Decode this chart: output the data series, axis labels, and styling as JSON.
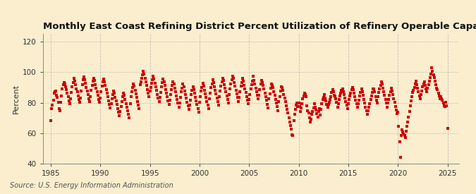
{
  "title": "Monthly East Coast Refining District Percent Utilization of Refinery Operable Capacity",
  "ylabel": "Percent",
  "source": "Source: U.S. Energy Information Administration",
  "bg_color": "#faeece",
  "plot_bg_color": "#faeece",
  "marker_color": "#cc0000",
  "marker": "s",
  "marker_size": 2.8,
  "xlim": [
    1984.2,
    2026.2
  ],
  "ylim": [
    40,
    125
  ],
  "yticks": [
    40,
    60,
    80,
    100,
    120
  ],
  "xticks": [
    1985,
    1990,
    1995,
    2000,
    2005,
    2010,
    2015,
    2020,
    2025
  ],
  "grid_color": "#aaaaaa",
  "title_fontsize": 9.5,
  "axis_fontsize": 7.5,
  "source_fontsize": 7.0,
  "data": [
    [
      1985.0,
      68.5
    ],
    [
      1985.083,
      76.2
    ],
    [
      1985.167,
      78.4
    ],
    [
      1985.25,
      81.5
    ],
    [
      1985.333,
      86.2
    ],
    [
      1985.417,
      87.3
    ],
    [
      1985.5,
      87.8
    ],
    [
      1985.583,
      85.1
    ],
    [
      1985.667,
      83.4
    ],
    [
      1985.75,
      80.5
    ],
    [
      1985.833,
      76.3
    ],
    [
      1985.917,
      74.8
    ],
    [
      1986.0,
      80.2
    ],
    [
      1986.083,
      84.6
    ],
    [
      1986.167,
      89.1
    ],
    [
      1986.25,
      91.8
    ],
    [
      1986.333,
      93.2
    ],
    [
      1986.417,
      92.5
    ],
    [
      1986.5,
      90.3
    ],
    [
      1986.583,
      88.4
    ],
    [
      1986.667,
      86.1
    ],
    [
      1986.75,
      83.8
    ],
    [
      1986.833,
      81.2
    ],
    [
      1986.917,
      79.6
    ],
    [
      1987.0,
      82.4
    ],
    [
      1987.083,
      86.8
    ],
    [
      1987.167,
      90.5
    ],
    [
      1987.25,
      93.4
    ],
    [
      1987.333,
      95.8
    ],
    [
      1987.417,
      94.1
    ],
    [
      1987.5,
      91.7
    ],
    [
      1987.583,
      89.3
    ],
    [
      1987.667,
      87.0
    ],
    [
      1987.75,
      84.6
    ],
    [
      1987.833,
      82.1
    ],
    [
      1987.917,
      80.3
    ],
    [
      1988.0,
      83.1
    ],
    [
      1988.083,
      87.5
    ],
    [
      1988.167,
      91.8
    ],
    [
      1988.25,
      94.9
    ],
    [
      1988.333,
      96.8
    ],
    [
      1988.417,
      95.3
    ],
    [
      1988.5,
      92.7
    ],
    [
      1988.583,
      90.2
    ],
    [
      1988.667,
      87.9
    ],
    [
      1988.75,
      85.4
    ],
    [
      1988.833,
      82.8
    ],
    [
      1988.917,
      80.9
    ],
    [
      1989.0,
      83.8
    ],
    [
      1989.083,
      88.1
    ],
    [
      1989.167,
      91.6
    ],
    [
      1989.25,
      94.2
    ],
    [
      1989.333,
      96.0
    ],
    [
      1989.417,
      94.5
    ],
    [
      1989.5,
      91.9
    ],
    [
      1989.583,
      89.4
    ],
    [
      1989.667,
      87.1
    ],
    [
      1989.75,
      84.7
    ],
    [
      1989.833,
      82.2
    ],
    [
      1989.917,
      80.1
    ],
    [
      1990.0,
      82.9
    ],
    [
      1990.083,
      87.3
    ],
    [
      1990.167,
      90.8
    ],
    [
      1990.25,
      93.5
    ],
    [
      1990.333,
      95.4
    ],
    [
      1990.417,
      93.8
    ],
    [
      1990.5,
      91.2
    ],
    [
      1990.583,
      88.7
    ],
    [
      1990.667,
      86.3
    ],
    [
      1990.75,
      83.8
    ],
    [
      1990.833,
      81.3
    ],
    [
      1990.917,
      79.0
    ],
    [
      1991.0,
      76.8
    ],
    [
      1991.083,
      79.4
    ],
    [
      1991.167,
      82.6
    ],
    [
      1991.25,
      85.3
    ],
    [
      1991.333,
      87.8
    ],
    [
      1991.417,
      86.2
    ],
    [
      1991.5,
      83.6
    ],
    [
      1991.583,
      81.1
    ],
    [
      1991.667,
      78.7
    ],
    [
      1991.75,
      76.2
    ],
    [
      1991.833,
      73.8
    ],
    [
      1991.917,
      71.5
    ],
    [
      1992.0,
      74.2
    ],
    [
      1992.083,
      77.6
    ],
    [
      1992.167,
      81.0
    ],
    [
      1992.25,
      83.8
    ],
    [
      1992.333,
      86.3
    ],
    [
      1992.417,
      84.7
    ],
    [
      1992.5,
      82.1
    ],
    [
      1992.583,
      79.6
    ],
    [
      1992.667,
      77.2
    ],
    [
      1992.75,
      74.7
    ],
    [
      1992.833,
      72.3
    ],
    [
      1992.917,
      70.0
    ],
    [
      1993.0,
      79.5
    ],
    [
      1993.083,
      83.9
    ],
    [
      1993.167,
      87.4
    ],
    [
      1993.25,
      90.1
    ],
    [
      1993.333,
      92.5
    ],
    [
      1993.417,
      91.0
    ],
    [
      1993.5,
      88.3
    ],
    [
      1993.583,
      85.8
    ],
    [
      1993.667,
      83.4
    ],
    [
      1993.75,
      80.9
    ],
    [
      1993.833,
      78.4
    ],
    [
      1993.917,
      76.1
    ],
    [
      1994.0,
      91.8
    ],
    [
      1994.083,
      93.5
    ],
    [
      1994.167,
      96.1
    ],
    [
      1994.25,
      98.4
    ],
    [
      1994.333,
      100.5
    ],
    [
      1994.417,
      98.8
    ],
    [
      1994.5,
      96.2
    ],
    [
      1994.583,
      93.7
    ],
    [
      1994.667,
      91.3
    ],
    [
      1994.75,
      88.8
    ],
    [
      1994.833,
      86.3
    ],
    [
      1994.917,
      83.9
    ],
    [
      1995.0,
      87.6
    ],
    [
      1995.083,
      90.1
    ],
    [
      1995.167,
      92.6
    ],
    [
      1995.25,
      94.9
    ],
    [
      1995.333,
      97.2
    ],
    [
      1995.417,
      95.5
    ],
    [
      1995.5,
      92.9
    ],
    [
      1995.583,
      90.4
    ],
    [
      1995.667,
      88.0
    ],
    [
      1995.75,
      85.5
    ],
    [
      1995.833,
      83.1
    ],
    [
      1995.917,
      80.7
    ],
    [
      1996.0,
      83.4
    ],
    [
      1996.083,
      86.9
    ],
    [
      1996.167,
      90.4
    ],
    [
      1996.25,
      93.1
    ],
    [
      1996.333,
      95.5
    ],
    [
      1996.417,
      93.8
    ],
    [
      1996.5,
      91.2
    ],
    [
      1996.583,
      88.7
    ],
    [
      1996.667,
      86.3
    ],
    [
      1996.75,
      83.8
    ],
    [
      1996.833,
      81.4
    ],
    [
      1996.917,
      79.0
    ],
    [
      1997.0,
      81.7
    ],
    [
      1997.083,
      85.2
    ],
    [
      1997.167,
      88.7
    ],
    [
      1997.25,
      91.4
    ],
    [
      1997.333,
      93.8
    ],
    [
      1997.417,
      92.1
    ],
    [
      1997.5,
      89.5
    ],
    [
      1997.583,
      87.0
    ],
    [
      1997.667,
      84.6
    ],
    [
      1997.75,
      82.1
    ],
    [
      1997.833,
      79.7
    ],
    [
      1997.917,
      77.3
    ],
    [
      1998.0,
      80.0
    ],
    [
      1998.083,
      83.5
    ],
    [
      1998.167,
      87.0
    ],
    [
      1998.25,
      89.7
    ],
    [
      1998.333,
      92.1
    ],
    [
      1998.417,
      90.4
    ],
    [
      1998.5,
      87.8
    ],
    [
      1998.583,
      85.3
    ],
    [
      1998.667,
      82.9
    ],
    [
      1998.75,
      80.4
    ],
    [
      1998.833,
      78.0
    ],
    [
      1998.917,
      75.6
    ],
    [
      1999.0,
      78.3
    ],
    [
      1999.083,
      81.8
    ],
    [
      1999.167,
      85.3
    ],
    [
      1999.25,
      88.0
    ],
    [
      1999.333,
      90.4
    ],
    [
      1999.417,
      88.7
    ],
    [
      1999.5,
      86.1
    ],
    [
      1999.583,
      83.6
    ],
    [
      1999.667,
      81.2
    ],
    [
      1999.75,
      78.7
    ],
    [
      1999.833,
      76.3
    ],
    [
      1999.917,
      73.9
    ],
    [
      2000.0,
      80.5
    ],
    [
      2000.083,
      84.0
    ],
    [
      2000.167,
      87.5
    ],
    [
      2000.25,
      90.2
    ],
    [
      2000.333,
      92.6
    ],
    [
      2000.417,
      90.9
    ],
    [
      2000.5,
      88.3
    ],
    [
      2000.583,
      85.8
    ],
    [
      2000.667,
      83.4
    ],
    [
      2000.75,
      80.9
    ],
    [
      2000.833,
      78.5
    ],
    [
      2000.917,
      76.1
    ],
    [
      2001.0,
      82.8
    ],
    [
      2001.083,
      86.3
    ],
    [
      2001.167,
      89.8
    ],
    [
      2001.25,
      92.5
    ],
    [
      2001.333,
      94.9
    ],
    [
      2001.417,
      93.2
    ],
    [
      2001.5,
      90.6
    ],
    [
      2001.583,
      88.1
    ],
    [
      2001.667,
      85.7
    ],
    [
      2001.75,
      83.2
    ],
    [
      2001.833,
      80.8
    ],
    [
      2001.917,
      78.4
    ],
    [
      2002.0,
      84.1
    ],
    [
      2002.083,
      87.6
    ],
    [
      2002.167,
      91.1
    ],
    [
      2002.25,
      93.8
    ],
    [
      2002.333,
      96.2
    ],
    [
      2002.417,
      94.5
    ],
    [
      2002.5,
      91.9
    ],
    [
      2002.583,
      89.4
    ],
    [
      2002.667,
      87.0
    ],
    [
      2002.75,
      84.5
    ],
    [
      2002.833,
      82.1
    ],
    [
      2002.917,
      79.7
    ],
    [
      2003.0,
      85.4
    ],
    [
      2003.083,
      88.9
    ],
    [
      2003.167,
      92.4
    ],
    [
      2003.25,
      95.1
    ],
    [
      2003.333,
      97.5
    ],
    [
      2003.417,
      95.8
    ],
    [
      2003.5,
      93.2
    ],
    [
      2003.583,
      90.7
    ],
    [
      2003.667,
      88.3
    ],
    [
      2003.75,
      85.8
    ],
    [
      2003.833,
      83.4
    ],
    [
      2003.917,
      81.0
    ],
    [
      2004.0,
      83.7
    ],
    [
      2004.083,
      87.2
    ],
    [
      2004.167,
      90.7
    ],
    [
      2004.25,
      93.4
    ],
    [
      2004.333,
      95.8
    ],
    [
      2004.417,
      94.1
    ],
    [
      2004.5,
      91.5
    ],
    [
      2004.583,
      89.0
    ],
    [
      2004.667,
      86.6
    ],
    [
      2004.75,
      84.1
    ],
    [
      2004.833,
      81.7
    ],
    [
      2004.917,
      79.3
    ],
    [
      2005.0,
      82.0
    ],
    [
      2005.083,
      85.5
    ],
    [
      2005.167,
      89.0
    ],
    [
      2005.25,
      91.7
    ],
    [
      2005.333,
      94.1
    ],
    [
      2005.417,
      97.2
    ],
    [
      2005.5,
      94.6
    ],
    [
      2005.583,
      92.1
    ],
    [
      2005.667,
      89.7
    ],
    [
      2005.75,
      87.2
    ],
    [
      2005.833,
      84.8
    ],
    [
      2005.917,
      82.4
    ],
    [
      2006.0,
      85.1
    ],
    [
      2006.083,
      88.6
    ],
    [
      2006.167,
      92.1
    ],
    [
      2006.25,
      94.8
    ],
    [
      2006.333,
      93.2
    ],
    [
      2006.417,
      91.5
    ],
    [
      2006.5,
      88.9
    ],
    [
      2006.583,
      86.4
    ],
    [
      2006.667,
      84.0
    ],
    [
      2006.75,
      81.5
    ],
    [
      2006.833,
      79.1
    ],
    [
      2006.917,
      76.7
    ],
    [
      2007.0,
      82.4
    ],
    [
      2007.083,
      85.9
    ],
    [
      2007.167,
      89.4
    ],
    [
      2007.25,
      92.1
    ],
    [
      2007.333,
      91.5
    ],
    [
      2007.417,
      89.8
    ],
    [
      2007.5,
      87.2
    ],
    [
      2007.583,
      84.7
    ],
    [
      2007.667,
      82.3
    ],
    [
      2007.75,
      79.8
    ],
    [
      2007.833,
      77.4
    ],
    [
      2007.917,
      75.0
    ],
    [
      2008.0,
      80.7
    ],
    [
      2008.083,
      84.2
    ],
    [
      2008.167,
      87.7
    ],
    [
      2008.25,
      90.4
    ],
    [
      2008.333,
      89.8
    ],
    [
      2008.417,
      88.1
    ],
    [
      2008.5,
      85.5
    ],
    [
      2008.583,
      83.0
    ],
    [
      2008.667,
      80.6
    ],
    [
      2008.75,
      78.1
    ],
    [
      2008.833,
      75.7
    ],
    [
      2008.917,
      73.3
    ],
    [
      2009.0,
      70.0
    ],
    [
      2009.083,
      67.5
    ],
    [
      2009.167,
      65.1
    ],
    [
      2009.25,
      62.6
    ],
    [
      2009.333,
      59.2
    ],
    [
      2009.417,
      58.8
    ],
    [
      2009.5,
      68.2
    ],
    [
      2009.583,
      72.3
    ],
    [
      2009.667,
      75.8
    ],
    [
      2009.75,
      78.5
    ],
    [
      2009.833,
      79.9
    ],
    [
      2009.917,
      77.5
    ],
    [
      2010.0,
      80.0
    ],
    [
      2010.083,
      77.4
    ],
    [
      2010.167,
      74.1
    ],
    [
      2010.25,
      76.5
    ],
    [
      2010.333,
      79.3
    ],
    [
      2010.417,
      82.6
    ],
    [
      2010.5,
      84.4
    ],
    [
      2010.583,
      86.1
    ],
    [
      2010.667,
      85.2
    ],
    [
      2010.75,
      83.8
    ],
    [
      2010.833,
      78.1
    ],
    [
      2010.917,
      74.8
    ],
    [
      2011.0,
      73.5
    ],
    [
      2011.083,
      70.1
    ],
    [
      2011.167,
      67.2
    ],
    [
      2011.25,
      69.1
    ],
    [
      2011.333,
      72.5
    ],
    [
      2011.417,
      74.2
    ],
    [
      2011.5,
      76.8
    ],
    [
      2011.583,
      79.4
    ],
    [
      2011.667,
      77.1
    ],
    [
      2011.75,
      75.3
    ],
    [
      2011.833,
      73.1
    ],
    [
      2011.917,
      70.8
    ],
    [
      2012.0,
      74.5
    ],
    [
      2012.083,
      76.1
    ],
    [
      2012.167,
      72.2
    ],
    [
      2012.25,
      75.8
    ],
    [
      2012.333,
      79.4
    ],
    [
      2012.417,
      82.1
    ],
    [
      2012.5,
      83.7
    ],
    [
      2012.583,
      85.4
    ],
    [
      2012.667,
      83.2
    ],
    [
      2012.75,
      81.1
    ],
    [
      2012.833,
      79.0
    ],
    [
      2012.917,
      76.9
    ],
    [
      2013.0,
      78.7
    ],
    [
      2013.083,
      80.4
    ],
    [
      2013.167,
      82.2
    ],
    [
      2013.25,
      84.1
    ],
    [
      2013.333,
      86.8
    ],
    [
      2013.417,
      88.6
    ],
    [
      2013.5,
      87.3
    ],
    [
      2013.583,
      85.1
    ],
    [
      2013.667,
      83.8
    ],
    [
      2013.75,
      82.5
    ],
    [
      2013.833,
      80.2
    ],
    [
      2013.917,
      77.0
    ],
    [
      2014.0,
      79.3
    ],
    [
      2014.083,
      82.1
    ],
    [
      2014.167,
      84.4
    ],
    [
      2014.25,
      86.2
    ],
    [
      2014.333,
      88.1
    ],
    [
      2014.417,
      89.3
    ],
    [
      2014.5,
      87.4
    ],
    [
      2014.583,
      85.2
    ],
    [
      2014.667,
      82.9
    ],
    [
      2014.75,
      80.7
    ],
    [
      2014.833,
      78.5
    ],
    [
      2014.917,
      76.3
    ],
    [
      2015.0,
      79.6
    ],
    [
      2015.083,
      82.1
    ],
    [
      2015.167,
      84.6
    ],
    [
      2015.25,
      86.1
    ],
    [
      2015.333,
      88.4
    ],
    [
      2015.417,
      90.2
    ],
    [
      2015.5,
      88.4
    ],
    [
      2015.583,
      86.1
    ],
    [
      2015.667,
      83.8
    ],
    [
      2015.75,
      81.5
    ],
    [
      2015.833,
      79.3
    ],
    [
      2015.917,
      77.0
    ],
    [
      2016.0,
      79.3
    ],
    [
      2016.083,
      81.8
    ],
    [
      2016.167,
      84.3
    ],
    [
      2016.25,
      86.8
    ],
    [
      2016.333,
      89.1
    ],
    [
      2016.417,
      87.4
    ],
    [
      2016.5,
      84.8
    ],
    [
      2016.583,
      82.3
    ],
    [
      2016.667,
      79.8
    ],
    [
      2016.75,
      77.3
    ],
    [
      2016.833,
      74.8
    ],
    [
      2016.917,
      72.3
    ],
    [
      2017.0,
      74.6
    ],
    [
      2017.083,
      77.1
    ],
    [
      2017.167,
      79.6
    ],
    [
      2017.25,
      82.1
    ],
    [
      2017.333,
      84.4
    ],
    [
      2017.417,
      86.8
    ],
    [
      2017.5,
      89.1
    ],
    [
      2017.583,
      88.9
    ],
    [
      2017.667,
      87.1
    ],
    [
      2017.75,
      84.0
    ],
    [
      2017.833,
      81.9
    ],
    [
      2017.917,
      79.8
    ],
    [
      2018.0,
      84.1
    ],
    [
      2018.083,
      86.6
    ],
    [
      2018.167,
      89.1
    ],
    [
      2018.25,
      91.6
    ],
    [
      2018.333,
      93.9
    ],
    [
      2018.417,
      92.2
    ],
    [
      2018.5,
      89.6
    ],
    [
      2018.583,
      87.1
    ],
    [
      2018.667,
      84.7
    ],
    [
      2018.75,
      82.2
    ],
    [
      2018.833,
      79.8
    ],
    [
      2018.917,
      77.3
    ],
    [
      2019.0,
      79.7
    ],
    [
      2019.083,
      82.2
    ],
    [
      2019.167,
      84.7
    ],
    [
      2019.25,
      87.2
    ],
    [
      2019.333,
      89.5
    ],
    [
      2019.417,
      87.8
    ],
    [
      2019.5,
      85.2
    ],
    [
      2019.583,
      82.7
    ],
    [
      2019.667,
      80.2
    ],
    [
      2019.75,
      77.7
    ],
    [
      2019.833,
      75.3
    ],
    [
      2019.917,
      72.8
    ],
    [
      2020.0,
      74.0
    ],
    [
      2020.083,
      64.4
    ],
    [
      2020.167,
      54.3
    ],
    [
      2020.25,
      44.2
    ],
    [
      2020.333,
      58.8
    ],
    [
      2020.417,
      62.3
    ],
    [
      2020.5,
      61.1
    ],
    [
      2020.583,
      59.5
    ],
    [
      2020.667,
      58.8
    ],
    [
      2020.75,
      57.2
    ],
    [
      2020.833,
      61.4
    ],
    [
      2020.917,
      64.7
    ],
    [
      2021.0,
      67.2
    ],
    [
      2021.083,
      70.5
    ],
    [
      2021.167,
      74.3
    ],
    [
      2021.25,
      77.8
    ],
    [
      2021.333,
      81.4
    ],
    [
      2021.417,
      84.1
    ],
    [
      2021.5,
      86.6
    ],
    [
      2021.583,
      88.3
    ],
    [
      2021.667,
      90.1
    ],
    [
      2021.75,
      92.4
    ],
    [
      2021.833,
      94.2
    ],
    [
      2021.917,
      91.8
    ],
    [
      2022.0,
      89.4
    ],
    [
      2022.083,
      87.1
    ],
    [
      2022.167,
      84.3
    ],
    [
      2022.25,
      82.6
    ],
    [
      2022.333,
      85.2
    ],
    [
      2022.417,
      87.8
    ],
    [
      2022.5,
      90.4
    ],
    [
      2022.583,
      92.1
    ],
    [
      2022.667,
      93.9
    ],
    [
      2022.75,
      91.6
    ],
    [
      2022.833,
      89.3
    ],
    [
      2022.917,
      87.1
    ],
    [
      2023.0,
      89.4
    ],
    [
      2023.083,
      91.7
    ],
    [
      2023.167,
      94.1
    ],
    [
      2023.25,
      96.4
    ],
    [
      2023.333,
      98.7
    ],
    [
      2023.417,
      103.1
    ],
    [
      2023.5,
      100.8
    ],
    [
      2023.583,
      98.5
    ],
    [
      2023.667,
      96.3
    ],
    [
      2023.75,
      94.1
    ],
    [
      2023.833,
      91.9
    ],
    [
      2023.917,
      89.7
    ],
    [
      2024.0,
      88.5
    ],
    [
      2024.083,
      86.3
    ],
    [
      2024.167,
      84.4
    ],
    [
      2024.25,
      82.6
    ],
    [
      2024.333,
      84.2
    ],
    [
      2024.417,
      82.4
    ],
    [
      2024.5,
      81.6
    ],
    [
      2024.583,
      79.9
    ],
    [
      2024.667,
      78.2
    ],
    [
      2024.75,
      77.6
    ],
    [
      2024.833,
      80.3
    ],
    [
      2024.917,
      78.1
    ],
    [
      2025.0,
      63.1
    ]
  ]
}
